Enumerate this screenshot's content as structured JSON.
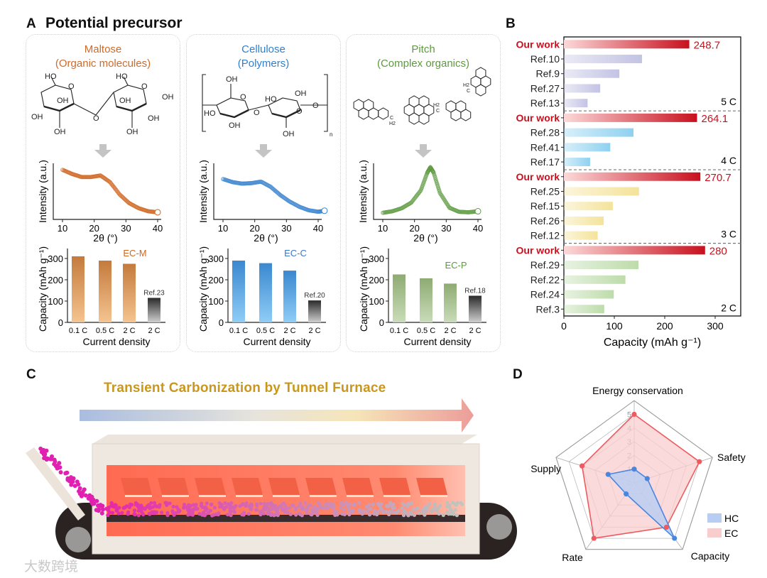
{
  "panel_a": {
    "letter": "A",
    "title": "Potential precursor",
    "cards": [
      {
        "name": "Maltose",
        "subtitle": "(Organic molecules)",
        "color": "#d06a2a",
        "structure_labels": [
          "HO",
          "O",
          "OH",
          "OH",
          "OH",
          "HO",
          "O",
          "OH",
          "OH",
          "OH",
          "OH",
          "O"
        ]
      },
      {
        "name": "Cellulose",
        "subtitle": "(Polymers)",
        "color": "#2f7fd0",
        "structure_labels": [
          "OH",
          "O",
          "HO",
          "OH",
          "OH",
          "HO",
          "O",
          "O",
          "OH",
          "O",
          "n"
        ]
      },
      {
        "name": "Pitch",
        "subtitle": "(Complex organics)",
        "color": "#5d9a3e",
        "structure_labels": [
          "H2",
          "C",
          "H2",
          "C",
          "H2",
          "C"
        ]
      }
    ]
  },
  "panel_b": {
    "letter": "B"
  },
  "panel_c": {
    "letter": "C",
    "title": "Transient Carbonization by Tunnel Furnace",
    "watermark": "大数跨境"
  },
  "panel_d": {
    "letter": "D"
  },
  "chart_data": [
    {
      "type": "line",
      "id": "xrd-maltose",
      "xlabel": "2θ (°)",
      "ylabel": "Intensity (a.u.)",
      "xlim": [
        8,
        42
      ],
      "xticks": [
        10,
        20,
        30,
        40
      ],
      "color": "#d0651f",
      "x": [
        10,
        13,
        16,
        19,
        22,
        25,
        28,
        31,
        34,
        37,
        40
      ],
      "y": [
        0.9,
        0.82,
        0.76,
        0.76,
        0.79,
        0.66,
        0.42,
        0.25,
        0.15,
        0.09,
        0.07
      ]
    },
    {
      "type": "line",
      "id": "xrd-cellulose",
      "xlabel": "2θ (°)",
      "ylabel": "Intensity (a.u.)",
      "xlim": [
        8,
        42
      ],
      "xticks": [
        10,
        20,
        30,
        40
      ],
      "color": "#3b84cf",
      "x": [
        10,
        13,
        16,
        19,
        22,
        25,
        28,
        31,
        34,
        37,
        40,
        42
      ],
      "y": [
        0.72,
        0.66,
        0.63,
        0.64,
        0.67,
        0.57,
        0.41,
        0.28,
        0.18,
        0.11,
        0.08,
        0.1
      ]
    },
    {
      "type": "line",
      "id": "xrd-pitch",
      "xlabel": "2θ (°)",
      "ylabel": "Intensity (a.u.)",
      "xlim": [
        8,
        42
      ],
      "xticks": [
        10,
        20,
        30,
        40
      ],
      "color": "#5d9a3e",
      "x": [
        10,
        13,
        16,
        19,
        22,
        24,
        25,
        26,
        28,
        31,
        34,
        37,
        40
      ],
      "y": [
        0.06,
        0.09,
        0.15,
        0.26,
        0.5,
        0.84,
        0.95,
        0.85,
        0.45,
        0.16,
        0.08,
        0.07,
        0.09
      ]
    },
    {
      "type": "bar",
      "id": "capacity-ec-m",
      "label": "EC-M",
      "label_color": "#d0651f",
      "xlabel": "Current density",
      "ylabel": "Capacity (mAh g⁻¹)",
      "ylim": [
        0,
        350
      ],
      "yticks": [
        0,
        100,
        200,
        300
      ],
      "categories": [
        "0.1 C",
        "0.5 C",
        "2 C",
        "2 C"
      ],
      "values": [
        310,
        290,
        275,
        115
      ],
      "ref_label": "Ref.23",
      "colors": [
        "#c47a3c",
        "#f5c490"
      ]
    },
    {
      "type": "bar",
      "id": "capacity-ec-c",
      "label": "EC-C",
      "label_color": "#3b76c8",
      "xlabel": "Current density",
      "ylabel": "Capacity (mAh g⁻¹)",
      "ylim": [
        0,
        350
      ],
      "yticks": [
        0,
        100,
        200,
        300
      ],
      "categories": [
        "0.1 C",
        "0.5 C",
        "2 C",
        "2 C"
      ],
      "values": [
        290,
        278,
        243,
        103
      ],
      "ref_label": "Ref.20",
      "colors": [
        "#3a88cf",
        "#8fcdf7"
      ]
    },
    {
      "type": "bar",
      "id": "capacity-ec-p",
      "label": "EC-P",
      "label_color": "#5d9a3e",
      "xlabel": "Current density",
      "ylabel": "Capacity (mAh g⁻¹)",
      "ylim": [
        0,
        350
      ],
      "yticks": [
        0,
        100,
        200,
        300
      ],
      "categories": [
        "0.1 C",
        "0.5 C",
        "2 C",
        "2 C"
      ],
      "values": [
        225,
        207,
        182,
        125
      ],
      "ref_label": "Ref.18",
      "colors": [
        "#8eab72",
        "#c9dcb9"
      ]
    },
    {
      "type": "bar",
      "id": "capacity-comparison",
      "orientation": "horizontal",
      "xlabel": "Capacity (mAh g⁻¹)",
      "xlim": [
        0,
        350
      ],
      "xticks": [
        0,
        100,
        200,
        300
      ],
      "groups": [
        {
          "rate": "5 C",
          "color": "#c3c3e4",
          "labels": [
            "Our work",
            "Ref.10",
            "Ref.9",
            "Ref.27",
            "Ref.13"
          ],
          "values": [
            248.7,
            155,
            110,
            72,
            47
          ],
          "value_label": "248.7"
        },
        {
          "rate": "4 C",
          "color": "#8ed1f0",
          "labels": [
            "Our work",
            "Ref.28",
            "Ref.41",
            "Ref.17"
          ],
          "values": [
            264.1,
            138,
            92,
            52
          ],
          "value_label": "264.1"
        },
        {
          "rate": "3 C",
          "color": "#f4e39a",
          "labels": [
            "Our work",
            "Ref.25",
            "Ref.15",
            "Ref.26",
            "Ref.12"
          ],
          "values": [
            270.7,
            149,
            97,
            79,
            67
          ],
          "value_label": "270.7"
        },
        {
          "rate": "2 C",
          "color": "#bddcaa",
          "labels": [
            "Our work",
            "Ref.29",
            "Ref.22",
            "Ref.24",
            "Ref.3"
          ],
          "values": [
            280,
            148,
            122,
            99,
            80
          ],
          "value_label": "280"
        }
      ],
      "highlight_color": "#c8101e"
    },
    {
      "type": "radar",
      "id": "radar-hc-ec",
      "axes": [
        "Energy conservation",
        "Safety",
        "Capacity",
        "Rate",
        "Supply"
      ],
      "rlim": [
        0,
        6
      ],
      "rticks": [
        0,
        1,
        2,
        3,
        4,
        5
      ],
      "series": [
        {
          "name": "HC",
          "color": "#4a86e0",
          "fill": "#b8cdf2",
          "values": [
            1,
            1,
            5,
            1,
            2
          ]
        },
        {
          "name": "EC",
          "color": "#ee5a5e",
          "fill": "#f8cdcd",
          "values": [
            5,
            5,
            4,
            5,
            4
          ]
        }
      ],
      "legend": "bottom-right"
    }
  ]
}
